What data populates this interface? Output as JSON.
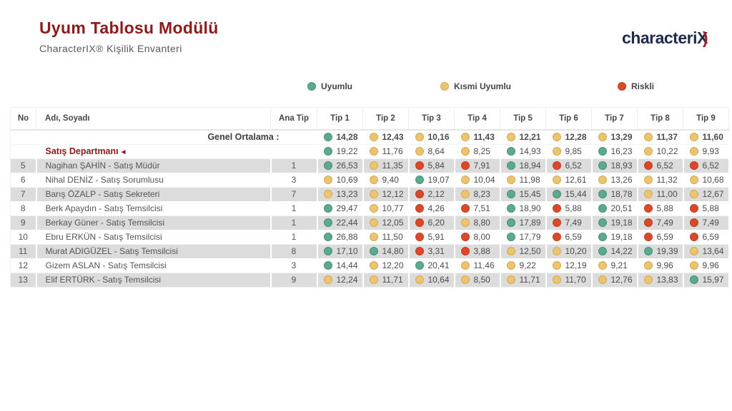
{
  "page": {
    "title": "Uyum Tablosu Modülü",
    "subtitle": "CharacterIX®  Kişilik Envanteri"
  },
  "logo": {
    "text": "characteri",
    "x": "X",
    "swoosh": ")"
  },
  "colors": {
    "title_accent": "#8c1b1b",
    "green": {
      "fill": "#5ca98e",
      "edge": "#47927b"
    },
    "yellow": {
      "fill": "#eac470",
      "edge": "#d8ab4e"
    },
    "red": {
      "fill": "#d84a2b",
      "edge": "#c23c20"
    }
  },
  "legend": {
    "uyumlu": {
      "label": "Uyumlu",
      "color_key": "green"
    },
    "kismi": {
      "label": "Kısmi Uyumlu",
      "color_key": "yellow"
    },
    "riskli": {
      "label": "Riskli",
      "color_key": "red"
    }
  },
  "table": {
    "columns": [
      "No",
      "Adı, Soyadı",
      "Ana Tip",
      "Tip 1",
      "Tip 2",
      "Tip 3",
      "Tip 4",
      "Tip 5",
      "Tip 6",
      "Tip 7",
      "Tip 8",
      "Tip 9"
    ],
    "overall": {
      "label": "Genel Ortalama :",
      "values": [
        {
          "v": "14,28",
          "c": "green"
        },
        {
          "v": "12,43",
          "c": "yellow"
        },
        {
          "v": "10,16",
          "c": "yellow"
        },
        {
          "v": "11,43",
          "c": "yellow"
        },
        {
          "v": "12,21",
          "c": "yellow"
        },
        {
          "v": "12,28",
          "c": "yellow"
        },
        {
          "v": "13,29",
          "c": "yellow"
        },
        {
          "v": "11,37",
          "c": "yellow"
        },
        {
          "v": "11,60",
          "c": "yellow"
        }
      ]
    },
    "department": {
      "label": "Satış Departmanı",
      "arrow": "◄",
      "values": [
        {
          "v": "19,22",
          "c": "green"
        },
        {
          "v": "11,76",
          "c": "yellow"
        },
        {
          "v": "8,64",
          "c": "yellow"
        },
        {
          "v": "8,25",
          "c": "yellow"
        },
        {
          "v": "14,93",
          "c": "green"
        },
        {
          "v": "9,85",
          "c": "yellow"
        },
        {
          "v": "16,23",
          "c": "green"
        },
        {
          "v": "10,22",
          "c": "yellow"
        },
        {
          "v": "9,93",
          "c": "yellow"
        }
      ]
    },
    "rows": [
      {
        "no": "5",
        "name": "Nagihan ŞAHİN - Satış Müdür",
        "ana_tip": "1",
        "values": [
          {
            "v": "26,53",
            "c": "green"
          },
          {
            "v": "11,35",
            "c": "yellow"
          },
          {
            "v": "5,84",
            "c": "red"
          },
          {
            "v": "7,91",
            "c": "red"
          },
          {
            "v": "18,94",
            "c": "green"
          },
          {
            "v": "6,52",
            "c": "red"
          },
          {
            "v": "18,93",
            "c": "green"
          },
          {
            "v": "6,52",
            "c": "red"
          },
          {
            "v": "6,52",
            "c": "red"
          }
        ]
      },
      {
        "no": "6",
        "name": "Nihal DENİZ - Satış Sorumlusu",
        "ana_tip": "3",
        "values": [
          {
            "v": "10,69",
            "c": "yellow"
          },
          {
            "v": "9,40",
            "c": "yellow"
          },
          {
            "v": "19,07",
            "c": "green"
          },
          {
            "v": "10,04",
            "c": "yellow"
          },
          {
            "v": "11,98",
            "c": "yellow"
          },
          {
            "v": "12,61",
            "c": "yellow"
          },
          {
            "v": "13,26",
            "c": "yellow"
          },
          {
            "v": "11,32",
            "c": "yellow"
          },
          {
            "v": "10,68",
            "c": "yellow"
          }
        ]
      },
      {
        "no": "7",
        "name": "Barış ÖZALP - Satış Sekreteri",
        "ana_tip": "7",
        "values": [
          {
            "v": "13,23",
            "c": "yellow"
          },
          {
            "v": "12,12",
            "c": "yellow"
          },
          {
            "v": "2,12",
            "c": "red"
          },
          {
            "v": "8,23",
            "c": "yellow"
          },
          {
            "v": "15,45",
            "c": "green"
          },
          {
            "v": "15,44",
            "c": "green"
          },
          {
            "v": "18,78",
            "c": "green"
          },
          {
            "v": "11,00",
            "c": "yellow"
          },
          {
            "v": "12,67",
            "c": "yellow"
          }
        ]
      },
      {
        "no": "8",
        "name": "Berk Apaydın - Satış Temsilcisi",
        "ana_tip": "1",
        "values": [
          {
            "v": "29,47",
            "c": "green"
          },
          {
            "v": "10,77",
            "c": "yellow"
          },
          {
            "v": "4,26",
            "c": "red"
          },
          {
            "v": "7,51",
            "c": "red"
          },
          {
            "v": "18,90",
            "c": "green"
          },
          {
            "v": "5,88",
            "c": "red"
          },
          {
            "v": "20,51",
            "c": "green"
          },
          {
            "v": "5,88",
            "c": "red"
          },
          {
            "v": "5,88",
            "c": "red"
          }
        ]
      },
      {
        "no": "9",
        "name": "Berkay Güner - Satış Temsilcisi",
        "ana_tip": "1",
        "values": [
          {
            "v": "22,44",
            "c": "green"
          },
          {
            "v": "12,05",
            "c": "yellow"
          },
          {
            "v": "6,20",
            "c": "red"
          },
          {
            "v": "8,80",
            "c": "yellow"
          },
          {
            "v": "17,89",
            "c": "green"
          },
          {
            "v": "7,49",
            "c": "red"
          },
          {
            "v": "19,18",
            "c": "green"
          },
          {
            "v": "7,49",
            "c": "red"
          },
          {
            "v": "7,49",
            "c": "red"
          }
        ]
      },
      {
        "no": "10",
        "name": "Ebru ERKÜN - Satış Temsilcisi",
        "ana_tip": "1",
        "values": [
          {
            "v": "26,88",
            "c": "green"
          },
          {
            "v": "11,50",
            "c": "yellow"
          },
          {
            "v": "5,91",
            "c": "red"
          },
          {
            "v": "8,00",
            "c": "red"
          },
          {
            "v": "17,79",
            "c": "green"
          },
          {
            "v": "6,59",
            "c": "red"
          },
          {
            "v": "19,18",
            "c": "green"
          },
          {
            "v": "6,59",
            "c": "red"
          },
          {
            "v": "6,59",
            "c": "red"
          }
        ]
      },
      {
        "no": "11",
        "name": "Murat ADIGÜZEL - Satış Temsilcisi",
        "ana_tip": "8",
        "values": [
          {
            "v": "17,10",
            "c": "green"
          },
          {
            "v": "14,80",
            "c": "green"
          },
          {
            "v": "3,31",
            "c": "red"
          },
          {
            "v": "3,88",
            "c": "red"
          },
          {
            "v": "12,50",
            "c": "yellow"
          },
          {
            "v": "10,20",
            "c": "yellow"
          },
          {
            "v": "14,22",
            "c": "green"
          },
          {
            "v": "19,39",
            "c": "green"
          },
          {
            "v": "13,64",
            "c": "yellow"
          }
        ]
      },
      {
        "no": "12",
        "name": "Gizem ASLAN - Satış Temsilcisi",
        "ana_tip": "3",
        "values": [
          {
            "v": "14,44",
            "c": "green"
          },
          {
            "v": "12,20",
            "c": "yellow"
          },
          {
            "v": "20,41",
            "c": "green"
          },
          {
            "v": "11,46",
            "c": "yellow"
          },
          {
            "v": "9,22",
            "c": "yellow"
          },
          {
            "v": "12,19",
            "c": "yellow"
          },
          {
            "v": "9,21",
            "c": "yellow"
          },
          {
            "v": "9,96",
            "c": "yellow"
          },
          {
            "v": "9,96",
            "c": "yellow"
          }
        ]
      },
      {
        "no": "13",
        "name": "Elif ERTÜRK - Satış Temsilcisi",
        "ana_tip": "9",
        "values": [
          {
            "v": "12,24",
            "c": "yellow"
          },
          {
            "v": "11,71",
            "c": "yellow"
          },
          {
            "v": "10,64",
            "c": "yellow"
          },
          {
            "v": "8,50",
            "c": "yellow"
          },
          {
            "v": "11,71",
            "c": "yellow"
          },
          {
            "v": "11,70",
            "c": "yellow"
          },
          {
            "v": "12,76",
            "c": "yellow"
          },
          {
            "v": "13,83",
            "c": "yellow"
          },
          {
            "v": "15,97",
            "c": "green"
          }
        ]
      }
    ]
  }
}
